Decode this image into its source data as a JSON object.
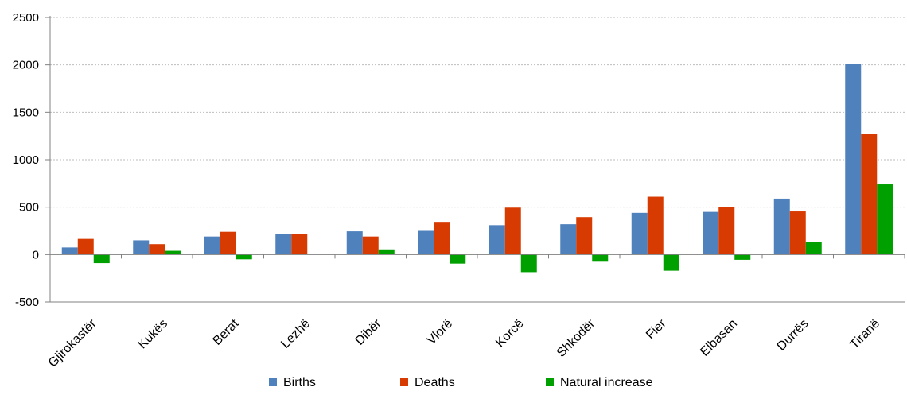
{
  "chart_data": {
    "type": "bar",
    "title": "",
    "xlabel": "",
    "ylabel": "",
    "ylim": [
      -500,
      2500
    ],
    "yticks": [
      -500,
      0,
      500,
      1000,
      1500,
      2000,
      2500
    ],
    "grid": true,
    "legend_position": "bottom",
    "categories": [
      "Gjirokastër",
      "Kukës",
      "Berat",
      "Lezhë",
      "Dibër",
      "Vlorë",
      "Korcë",
      "Shkodër",
      "Fier",
      "Elbasan",
      "Durrës",
      "Tiranë"
    ],
    "series": [
      {
        "name": "Births",
        "color": "#4F81BD",
        "values": [
          75,
          150,
          190,
          220,
          245,
          250,
          310,
          320,
          440,
          450,
          590,
          2010
        ]
      },
      {
        "name": "Deaths",
        "color": "#D83B01",
        "values": [
          165,
          110,
          240,
          220,
          190,
          345,
          495,
          395,
          610,
          505,
          455,
          1270
        ]
      },
      {
        "name": "Natural increase",
        "color": "#00A000",
        "values": [
          -90,
          40,
          -50,
          0,
          55,
          -95,
          -185,
          -75,
          -170,
          -55,
          135,
          740
        ]
      }
    ]
  }
}
